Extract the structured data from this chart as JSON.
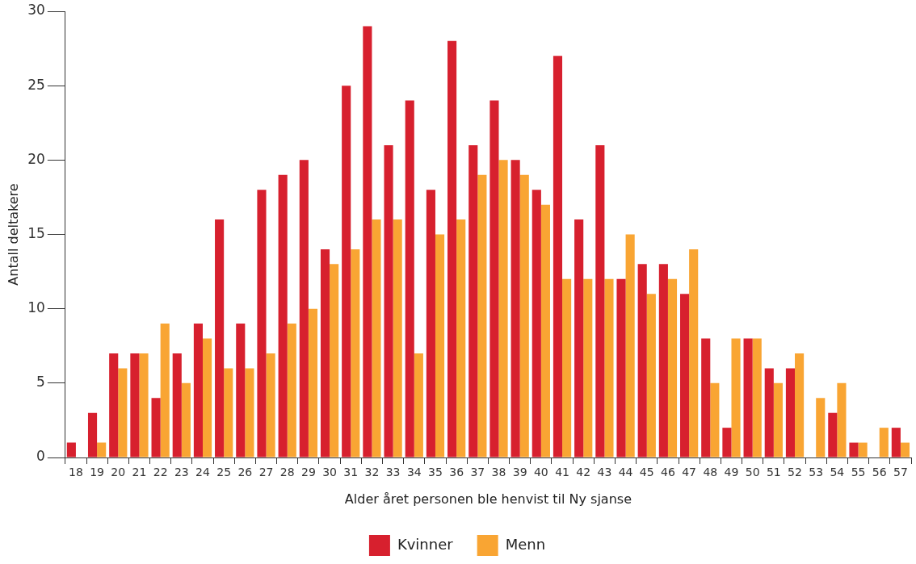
{
  "chart_data": {
    "type": "bar",
    "xlabel": "Alder året personen ble henvist til Ny sjanse",
    "ylabel": "Antall deltakere",
    "categories": [
      "18",
      "19",
      "20",
      "21",
      "22",
      "23",
      "24",
      "25",
      "26",
      "27",
      "28",
      "29",
      "30",
      "31",
      "32",
      "33",
      "34",
      "35",
      "36",
      "37",
      "38",
      "39",
      "40",
      "41",
      "42",
      "43",
      "44",
      "45",
      "46",
      "47",
      "48",
      "49",
      "50",
      "51",
      "52",
      "53",
      "54",
      "55",
      "56",
      "57"
    ],
    "series": [
      {
        "name": "Kvinner",
        "color": "#d7202e",
        "values": [
          1,
          3,
          7,
          7,
          4,
          7,
          9,
          16,
          9,
          18,
          19,
          20,
          14,
          25,
          29,
          21,
          24,
          18,
          28,
          21,
          24,
          20,
          18,
          27,
          16,
          21,
          12,
          13,
          13,
          11,
          8,
          2,
          8,
          6,
          6,
          0,
          3,
          1,
          0,
          2
        ]
      },
      {
        "name": "Menn",
        "color": "#f9a533",
        "values": [
          0,
          1,
          6,
          7,
          9,
          5,
          8,
          6,
          6,
          7,
          9,
          10,
          13,
          14,
          16,
          16,
          7,
          15,
          16,
          19,
          20,
          19,
          17,
          12,
          12,
          12,
          15,
          11,
          12,
          14,
          5,
          8,
          8,
          5,
          7,
          4,
          5,
          1,
          2,
          1
        ]
      }
    ],
    "ylim": [
      0,
      30
    ],
    "yticks": [
      0,
      5,
      10,
      15,
      20,
      25,
      30
    ],
    "grid": false,
    "legend": "bottom"
  }
}
